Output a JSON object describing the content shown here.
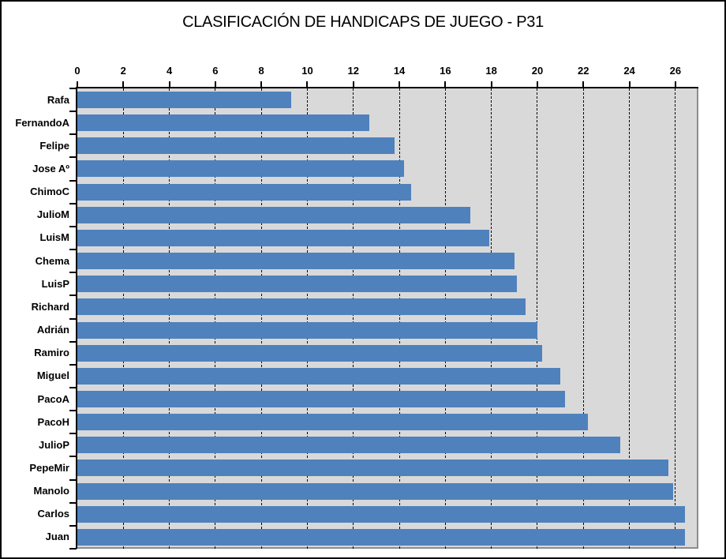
{
  "chart_data": {
    "type": "bar",
    "orientation": "horizontal",
    "title": "CLASIFICACIÓN DE HANDICAPS DE JUEGO - P31",
    "categories": [
      "Rafa",
      "FernandoA",
      "Felipe",
      "Jose Aº",
      "ChimoC",
      "JulioM",
      "LuisM",
      "Chema",
      "LuisP",
      "Richard",
      "Adrián",
      "Ramiro",
      "Miguel",
      "PacoA",
      "PacoH",
      "JulioP",
      "PepeMir",
      "Manolo",
      "Carlos",
      "Juan"
    ],
    "values": [
      9.3,
      12.7,
      13.8,
      14.2,
      14.5,
      17.1,
      17.9,
      19.0,
      19.1,
      19.5,
      20.0,
      20.2,
      21.0,
      21.2,
      22.2,
      23.6,
      25.7,
      25.9,
      26.4,
      26.4
    ],
    "x_ticks": [
      0,
      2,
      4,
      6,
      8,
      10,
      12,
      14,
      16,
      18,
      20,
      22,
      24,
      26
    ],
    "xlim": [
      0,
      27
    ],
    "xlabel": "",
    "ylabel": "",
    "grid": "vertical-dashed",
    "legend": "none",
    "colors": {
      "bar": "#4F81BD",
      "plot_bg": "#D9D9D9",
      "plot_border": "#8C8C8C",
      "axis": "#000000",
      "chart_border": "#000000",
      "background": "#FFFFFF"
    }
  }
}
